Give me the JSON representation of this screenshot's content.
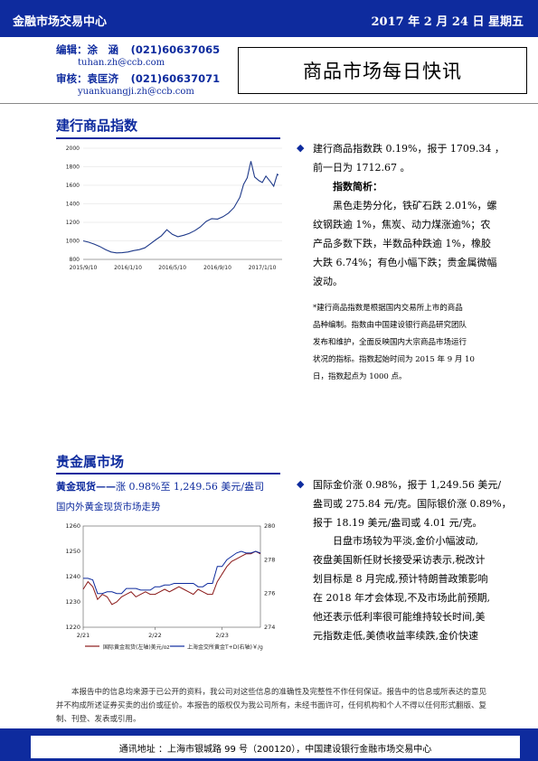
{
  "header": {
    "org": "金融市场交易中心",
    "date": "2017 年 2 月 24 日  星期五"
  },
  "contacts": {
    "editor_label": "编辑：涂　涵",
    "editor_phone": "(021)60637065",
    "editor_email": "tuhan.zh@ccb.com",
    "reviewer_label": "审核：袁匡济",
    "reviewer_phone": "(021)60637071",
    "reviewer_email": "yuankuangji.zh@ccb.com"
  },
  "report_title": "商品市场每日快讯",
  "commodity": {
    "section_title": "建行商品指数",
    "bullet_line1": "建行商品指数跌 0.19%，报于 1709.34 ，",
    "bullet_line2": "前一日为 1712.67 。",
    "brief_title": "指数简析：",
    "brief_lines": [
      "黑色走势分化，铁矿石跌 2.01%，螺",
      "纹钢跌逾 1%，焦炭、动力煤涨逾%；农",
      "产品多数下跌，半数品种跌逾 1%，橡胶",
      "大跌 6.74%；有色小幅下跌；贵金属微幅",
      "波动。"
    ],
    "note_lines": [
      "*建行商品指数是根据国内交易所上市的商品",
      "品种编制。指数由中国建设银行商品研究团队",
      "发布和维护，全面反映国内大宗商品市场运行",
      "状况的指标。指数起始时间为 2015 年 9 月 10",
      "日，指数起点为 1000 点。"
    ]
  },
  "metals": {
    "section_title": "贵金属市场",
    "gold_head": "黄金现货——",
    "gold_head_rest": "涨 0.98%至 1,249.56 美元/盎司",
    "chart_caption": "国内外黄金现货市场走势",
    "bullet_lines": [
      "国际金价涨 0.98%，报于 1,249.56 美元/",
      "盎司或 275.84 元/克。国际银价涨 0.89%，",
      "报于 18.19 美元/盎司或 4.01 元/克。"
    ],
    "body_lines": [
      "日盘市场较为平淡,金价小幅波动,",
      "夜盘美国新任财长接受采访表示,税改计",
      "划目标是 8 月完成,预计特朗普政策影响",
      "在 2018 年才会体现,不及市场此前预期,",
      "他还表示低利率很可能维持较长时间,美",
      "元指数走低,美债收益率续跌,金价快速"
    ]
  },
  "disclaimer": "本报告中的信息均来源于已公开的资料，我公司对这些信息的准确性及完整性不作任何保证。报告中的信息或所表达的意见并不构成所述证券买卖的出价或征价。本报告的版权仅为我公司所有，未经书面许可，任何机构和个人不得以任何形式翻版、复制、刊登、发表或引用。",
  "footer": "通讯地址 ：上海市银城路 99 号（200120），中国建设银行金融市场交易中心",
  "chart_data": [
    {
      "type": "line",
      "ylim": [
        800,
        2000
      ],
      "y_ticks": [
        "2000",
        "1800",
        "1600",
        "1400",
        "1200",
        "1000",
        "800"
      ],
      "x_ticks": [
        "2015/9/10",
        "2016/1/10",
        "2016/5/10",
        "2016/9/10",
        "2017/1/10"
      ],
      "color": "#1f3a8a",
      "x": [
        "2015-09-10",
        "2015-09-25",
        "2015-10-10",
        "2015-10-25",
        "2015-11-10",
        "2015-11-25",
        "2015-12-10",
        "2015-12-25",
        "2016-01-10",
        "2016-01-25",
        "2016-02-10",
        "2016-02-25",
        "2016-03-10",
        "2016-03-25",
        "2016-04-10",
        "2016-04-25",
        "2016-05-10",
        "2016-05-25",
        "2016-06-10",
        "2016-06-25",
        "2016-07-10",
        "2016-07-25",
        "2016-08-10",
        "2016-08-25",
        "2016-09-10",
        "2016-09-25",
        "2016-10-10",
        "2016-10-25",
        "2016-11-10",
        "2016-11-20",
        "2016-11-30",
        "2016-12-10",
        "2016-12-20",
        "2017-01-01",
        "2017-01-10",
        "2017-01-20",
        "2017-02-01",
        "2017-02-10",
        "2017-02-20",
        "2017-02-23"
      ],
      "values": [
        1000,
        985,
        965,
        940,
        905,
        880,
        870,
        872,
        880,
        895,
        905,
        925,
        965,
        1010,
        1055,
        1120,
        1070,
        1045,
        1060,
        1080,
        1110,
        1150,
        1210,
        1240,
        1235,
        1260,
        1300,
        1360,
        1470,
        1610,
        1680,
        1860,
        1690,
        1650,
        1630,
        1700,
        1640,
        1590,
        1720,
        1709
      ]
    },
    {
      "type": "line",
      "x_ticks": [
        "2/21",
        "2/22",
        "2/23"
      ],
      "y_left_ticks": [
        "1260",
        "1250",
        "1240",
        "1230",
        "1220"
      ],
      "y_right_ticks": [
        "280",
        "278",
        "276",
        "274"
      ],
      "ylim_left": [
        1220,
        1260
      ],
      "ylim_right": [
        274,
        280
      ],
      "series": [
        {
          "name": "国际黄金现货(左轴)美元/oz",
          "axis": "left",
          "color": "#8b1a1a",
          "values": [
            1235,
            1238,
            1236,
            1231,
            1233,
            1232,
            1229,
            1230,
            1232,
            1233,
            1234,
            1232,
            1233,
            1234,
            1233,
            1233,
            1234,
            1235,
            1234,
            1235,
            1236,
            1235,
            1234,
            1233,
            1235,
            1234,
            1233,
            1233,
            1238,
            1241,
            1244,
            1246,
            1247,
            1248,
            1249,
            1249,
            1250,
            1249
          ]
        },
        {
          "name": "上海金交所黄金T+D(右轴)￥/g",
          "axis": "right",
          "color": "#0e2b9e",
          "values": [
            276.9,
            276.9,
            276.8,
            276.0,
            276.0,
            276.1,
            276.1,
            276.0,
            276.0,
            276.3,
            276.3,
            276.3,
            276.2,
            276.2,
            276.2,
            276.4,
            276.4,
            276.5,
            276.5,
            276.6,
            276.6,
            276.6,
            276.6,
            276.6,
            276.4,
            276.4,
            276.6,
            276.6,
            277.6,
            277.6,
            278.0,
            278.2,
            278.4,
            278.5,
            278.4,
            278.4,
            278.5,
            278.4
          ]
        }
      ]
    }
  ]
}
